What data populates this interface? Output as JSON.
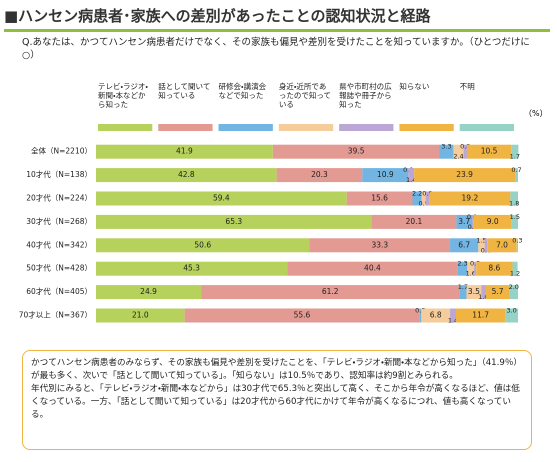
{
  "chart_data": {
    "type": "stacked-bar-horizontal",
    "title": "■ハンセン病患者･家族への差別があったことの認知状況と経路",
    "question": "Q.あなたは、かつてハンセン病患者だけでなく、その家族も偏見や差別を受けたことを知っていますか。（ひとつだけに○）",
    "unit_label": "（%）",
    "xlim": [
      0,
      100
    ],
    "categories": [
      "全体（N=2210）",
      "10才代（N=138）",
      "20才代（N=224）",
      "30才代（N=268）",
      "40才代（N=342）",
      "50才代（N=428）",
      "60才代（N=405）",
      "70才以上（N=367）"
    ],
    "series": [
      {
        "name": "テレビ・ラジオ・新聞・本などから知った",
        "color": "#b6d15c",
        "values": [
          41.9,
          42.8,
          59.4,
          65.3,
          50.6,
          45.3,
          24.9,
          21.0
        ],
        "value_labels": [
          "41.9",
          "42.8",
          "59.4",
          "65.3",
          "50.6",
          "45.3",
          "24.9",
          "21.0"
        ]
      },
      {
        "name": "話として聞いて知っている",
        "color": "#e39a92",
        "values": [
          39.5,
          20.3,
          15.6,
          20.1,
          33.3,
          40.4,
          61.2,
          55.6
        ],
        "value_labels": [
          "39.5",
          "20.3",
          "15.6",
          "20.1",
          "33.3",
          "40.4",
          "61.2",
          "55.6"
        ]
      },
      {
        "name": "研修会・講演会などで知った",
        "color": "#72b4e2",
        "values": [
          3.3,
          10.9,
          2.2,
          3.7,
          6.7,
          2.3,
          1.7,
          0.5
        ],
        "value_labels": [
          "3.3",
          "10.9",
          "2.2",
          "3.7",
          "6.7",
          "2.3",
          "1.7",
          "0.5"
        ]
      },
      {
        "name": "身近・近所であったので知っている",
        "color": "#f6cd9a",
        "values": [
          2.4,
          0.0,
          0.9,
          0.0,
          1.5,
          1.6,
          3.5,
          6.8
        ],
        "value_labels": [
          "2.4",
          "0.0",
          "0.9",
          "0.0",
          "1.5",
          "1.6",
          "3.5",
          "6.8"
        ]
      },
      {
        "name": "県や市町村の広報誌や冊子から知った",
        "color": "#bca6d6",
        "values": [
          0.8,
          1.4,
          0.9,
          0.4,
          0.6,
          0.5,
          1.0,
          1.4
        ],
        "value_labels": [
          "0.8",
          "1.4",
          "0.9",
          "0.4",
          "0.6",
          "0.5",
          "1.0",
          "1.4"
        ]
      },
      {
        "name": "知らない",
        "color": "#f0b443",
        "values": [
          10.5,
          23.9,
          19.2,
          9.0,
          7.0,
          8.6,
          5.7,
          11.7
        ],
        "value_labels": [
          "10.5",
          "23.9",
          "19.2",
          "9.0",
          "7.0",
          "8.6",
          "5.7",
          "11.7"
        ]
      },
      {
        "name": "不明",
        "color": "#96d2c6",
        "values": [
          1.7,
          0.7,
          1.8,
          1.5,
          0.3,
          1.2,
          2.0,
          3.0
        ],
        "value_labels": [
          "1.7",
          "0.7",
          "1.8",
          "1.5",
          "0.3",
          "1.2",
          "2.0",
          "3.0"
        ]
      }
    ],
    "notes": [
      "かつてハンセン病患者のみならず、その家族も偏見や差別を受けたことを、「テレビ・ラジオ・新聞・本などから知った」（41.9％）が最も多く、次いで「話として聞いて知っている」。「知らない」は10.5％であり、認知率は約9割とみられる。",
      "年代別にみると、「テレビ・ラジオ・新聞・本などから」は30才代で65.3％と突出して高く、そこから年令が高くなるほど、値は低くなっている。一方、「話として聞いて知っている」は20才代から60才代にかけて年令が高くなるにつれ、値も高くなっている。"
    ]
  }
}
